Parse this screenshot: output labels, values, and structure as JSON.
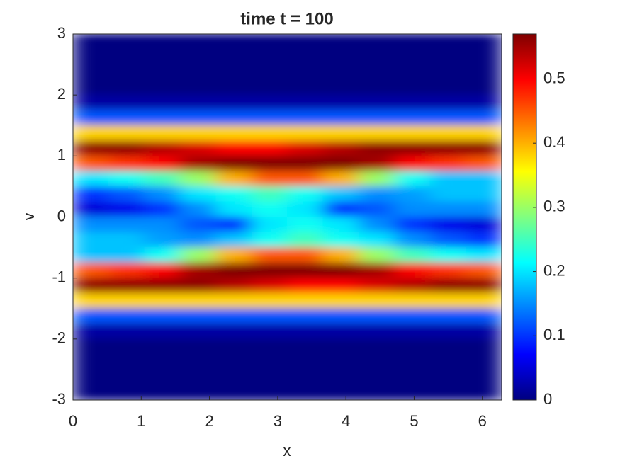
{
  "chart_data": {
    "type": "heatmap",
    "title": "time t = 100",
    "x_label": "x",
    "y_label": "v",
    "colormap": "jet",
    "x": [
      0.26,
      0.79,
      1.31,
      1.83,
      2.36,
      2.88,
      3.4,
      3.93,
      4.45,
      4.97,
      5.5,
      6.02
    ],
    "y": [
      2.875,
      2.625,
      2.375,
      2.125,
      1.875,
      1.625,
      1.375,
      1.125,
      0.875,
      0.625,
      0.375,
      0.125,
      -0.125,
      -0.375,
      -0.625,
      -0.875,
      -1.125,
      -1.375,
      -1.625,
      -1.875,
      -2.125,
      -2.375,
      -2.625,
      -2.875
    ],
    "z": [
      [
        0,
        0,
        0,
        0,
        0,
        0,
        0,
        0,
        0,
        0,
        0,
        0
      ],
      [
        0,
        0,
        0,
        0,
        0,
        0,
        0,
        0,
        0,
        0,
        0,
        0
      ],
      [
        0,
        0,
        0,
        0,
        0,
        0,
        0,
        0,
        0,
        0,
        0,
        0
      ],
      [
        0,
        0,
        0,
        0,
        0,
        0,
        0,
        0,
        0,
        0,
        0,
        0
      ],
      [
        0.02,
        0.02,
        0.02,
        0.02,
        0.02,
        0.02,
        0.02,
        0.02,
        0.02,
        0.02,
        0.02,
        0.02
      ],
      [
        0.12,
        0.12,
        0.12,
        0.12,
        0.12,
        0.12,
        0.12,
        0.12,
        0.12,
        0.12,
        0.12,
        0.12
      ],
      [
        0.38,
        0.38,
        0.38,
        0.38,
        0.38,
        0.38,
        0.38,
        0.38,
        0.38,
        0.38,
        0.38,
        0.38
      ],
      [
        0.56,
        0.56,
        0.54,
        0.52,
        0.5,
        0.5,
        0.52,
        0.54,
        0.56,
        0.56,
        0.56,
        0.56
      ],
      [
        0.45,
        0.47,
        0.5,
        0.55,
        0.57,
        0.57,
        0.57,
        0.57,
        0.55,
        0.5,
        0.47,
        0.45
      ],
      [
        0.2,
        0.22,
        0.25,
        0.3,
        0.4,
        0.45,
        0.45,
        0.4,
        0.3,
        0.22,
        0.18,
        0.18
      ],
      [
        0.1,
        0.12,
        0.15,
        0.2,
        0.22,
        0.25,
        0.22,
        0.18,
        0.15,
        0.16,
        0.18,
        0.18
      ],
      [
        0.05,
        0.06,
        0.1,
        0.15,
        0.2,
        0.22,
        0.2,
        0.1,
        0.12,
        0.15,
        0.15,
        0.15
      ],
      [
        0.15,
        0.15,
        0.15,
        0.12,
        0.1,
        0.2,
        0.22,
        0.2,
        0.15,
        0.1,
        0.06,
        0.05
      ],
      [
        0.18,
        0.18,
        0.16,
        0.15,
        0.18,
        0.22,
        0.25,
        0.22,
        0.2,
        0.15,
        0.12,
        0.1
      ],
      [
        0.18,
        0.18,
        0.22,
        0.3,
        0.4,
        0.45,
        0.45,
        0.4,
        0.3,
        0.25,
        0.22,
        0.2
      ],
      [
        0.45,
        0.47,
        0.5,
        0.55,
        0.57,
        0.57,
        0.57,
        0.57,
        0.55,
        0.5,
        0.47,
        0.45
      ],
      [
        0.56,
        0.56,
        0.56,
        0.56,
        0.54,
        0.52,
        0.5,
        0.5,
        0.52,
        0.54,
        0.56,
        0.56
      ],
      [
        0.38,
        0.38,
        0.38,
        0.38,
        0.38,
        0.38,
        0.38,
        0.38,
        0.38,
        0.38,
        0.38,
        0.38
      ],
      [
        0.12,
        0.12,
        0.12,
        0.12,
        0.12,
        0.12,
        0.12,
        0.12,
        0.12,
        0.12,
        0.12,
        0.12
      ],
      [
        0.02,
        0.02,
        0.02,
        0.02,
        0.02,
        0.02,
        0.02,
        0.02,
        0.02,
        0.02,
        0.02,
        0.02
      ],
      [
        0,
        0,
        0,
        0,
        0,
        0,
        0,
        0,
        0,
        0,
        0,
        0
      ],
      [
        0,
        0,
        0,
        0,
        0,
        0,
        0,
        0,
        0,
        0,
        0,
        0
      ],
      [
        0,
        0,
        0,
        0,
        0,
        0,
        0,
        0,
        0,
        0,
        0,
        0
      ],
      [
        0,
        0,
        0,
        0,
        0,
        0,
        0,
        0,
        0,
        0,
        0,
        0
      ]
    ],
    "xlim": [
      0,
      6.2832
    ],
    "xticks": [
      0,
      1,
      2,
      3,
      4,
      5,
      6
    ],
    "ylim": [
      -3,
      3
    ],
    "yticks": [
      -3,
      -2,
      -1,
      0,
      1,
      2,
      3
    ],
    "clim": [
      0,
      0.57
    ],
    "cticks": [
      0,
      0.1,
      0.2,
      0.3,
      0.4,
      0.5
    ]
  }
}
